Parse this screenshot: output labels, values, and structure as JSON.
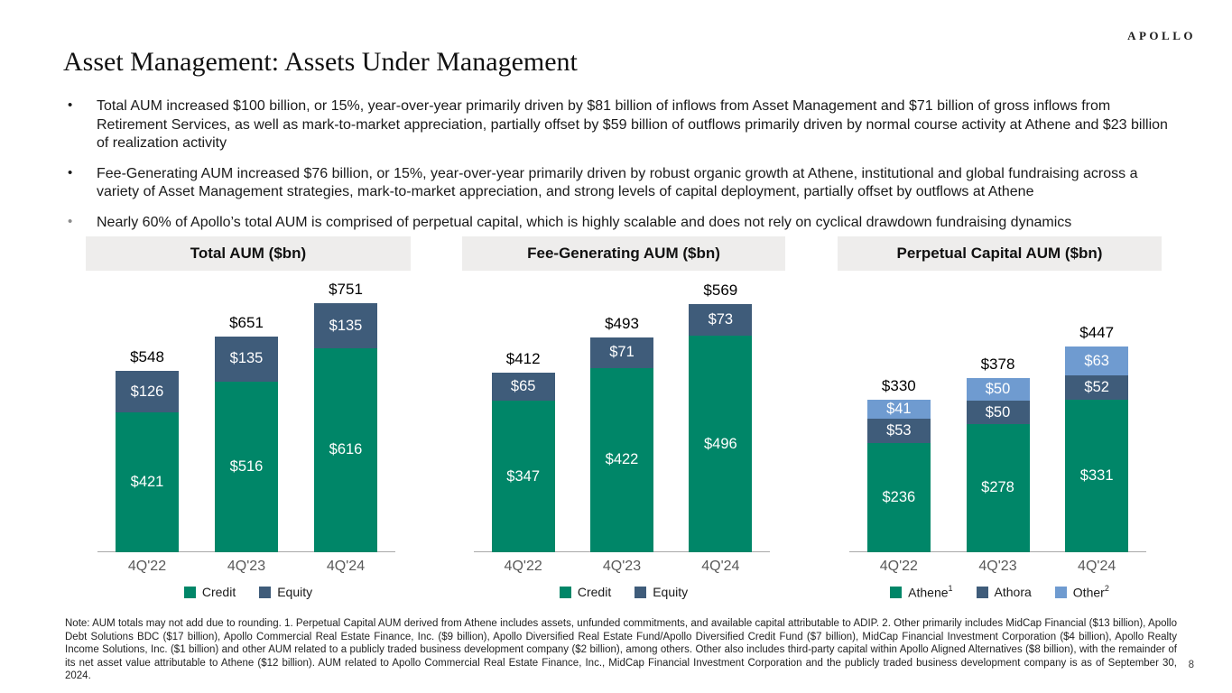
{
  "brand": {
    "logo_text": "APOLLO"
  },
  "header": {
    "title": "Asset Management: Assets Under Management"
  },
  "bullets": [
    {
      "text": "Total AUM increased $100 billion, or 15%, year-over-year primarily driven by $81 billion of inflows from Asset Management and $71 billion of gross inflows from Retirement Services, as well as mark-to-market appreciation, partially offset by $59 billion of outflows primarily driven by normal course activity at Athene and $23 billion of realization activity"
    },
    {
      "text": "Fee-Generating AUM increased $76 billion, or 15%, year-over-year primarily driven by robust organic growth at Athene, institutional and global fundraising across a variety of Asset Management strategies, mark-to-market appreciation, and strong levels of capital deployment, partially offset by outflows at Athene"
    },
    {
      "text": "Nearly 60% of Apollo’s total AUM is comprised of perpetual capital, which is highly scalable and does not rely on cyclical drawdown fundraising dynamics"
    }
  ],
  "colors": {
    "credit_green": "#008668",
    "equity_slate": "#3F5C7A",
    "other_light_blue": "#6F9BD0",
    "header_bg": "#EEEDEC"
  },
  "chart_data": [
    {
      "type": "bar",
      "stacked": true,
      "title": "Total AUM ($bn)",
      "categories": [
        "4Q'22",
        "4Q'23",
        "4Q'24"
      ],
      "series": [
        {
          "name": "Credit",
          "color": "#008668",
          "values": [
            421,
            516,
            616
          ]
        },
        {
          "name": "Equity",
          "color": "#3F5C7A",
          "values": [
            126,
            135,
            135
          ]
        }
      ],
      "totals": [
        548,
        651,
        751
      ],
      "legend": [
        {
          "label": "Credit",
          "sup": ""
        },
        {
          "label": "Equity",
          "sup": ""
        }
      ],
      "value_prefix": "$",
      "ylim": [
        0,
        850
      ],
      "grid": false,
      "legend_position": "bottom"
    },
    {
      "type": "bar",
      "stacked": true,
      "title": "Fee-Generating AUM ($bn)",
      "categories": [
        "4Q'22",
        "4Q'23",
        "4Q'24"
      ],
      "series": [
        {
          "name": "Credit",
          "color": "#008668",
          "values": [
            347,
            422,
            496
          ]
        },
        {
          "name": "Equity",
          "color": "#3F5C7A",
          "values": [
            65,
            71,
            73
          ]
        }
      ],
      "totals": [
        412,
        493,
        569
      ],
      "legend": [
        {
          "label": "Credit",
          "sup": ""
        },
        {
          "label": "Equity",
          "sup": ""
        }
      ],
      "value_prefix": "$",
      "ylim": [
        0,
        645
      ],
      "grid": false,
      "legend_position": "bottom"
    },
    {
      "type": "bar",
      "stacked": true,
      "title": "Perpetual Capital AUM ($bn)",
      "categories": [
        "4Q'22",
        "4Q'23",
        "4Q'24"
      ],
      "series": [
        {
          "name": "Athene",
          "color": "#008668",
          "values": [
            236,
            278,
            331
          ]
        },
        {
          "name": "Athora",
          "color": "#3F5C7A",
          "values": [
            53,
            50,
            52
          ]
        },
        {
          "name": "Other",
          "color": "#6F9BD0",
          "values": [
            41,
            50,
            63
          ]
        }
      ],
      "totals": [
        330,
        378,
        447
      ],
      "legend": [
        {
          "label": "Athene",
          "sup": "1"
        },
        {
          "label": "Athora",
          "sup": ""
        },
        {
          "label": "Other",
          "sup": "2"
        }
      ],
      "value_prefix": "$",
      "ylim": [
        0,
        610
      ],
      "grid": false,
      "legend_position": "bottom"
    }
  ],
  "footnote": "Note: AUM totals may not add due to rounding. 1. Perpetual Capital AUM derived from Athene includes assets, unfunded commitments, and available capital attributable to ADIP. 2. Other primarily includes MidCap Financial ($13 billion), Apollo Debt Solutions BDC ($17 billion), Apollo Commercial Real Estate Finance, Inc. ($9 billion), Apollo Diversified Real Estate Fund/Apollo Diversified Credit Fund ($7 billion), MidCap Financial Investment Corporation ($4 billion), Apollo Realty Income Solutions, Inc. ($1 billion) and other AUM related to a publicly traded business development company ($2 billion), among others. Other also includes third-party capital within Apollo Aligned Alternatives ($8 billion), with the remainder of its net asset value attributable to Athene ($12 billion). AUM related to Apollo Commercial Real Estate Finance, Inc., MidCap Financial Investment Corporation and the publicly traded business development company is as of September 30, 2024.",
  "page_number": "8"
}
